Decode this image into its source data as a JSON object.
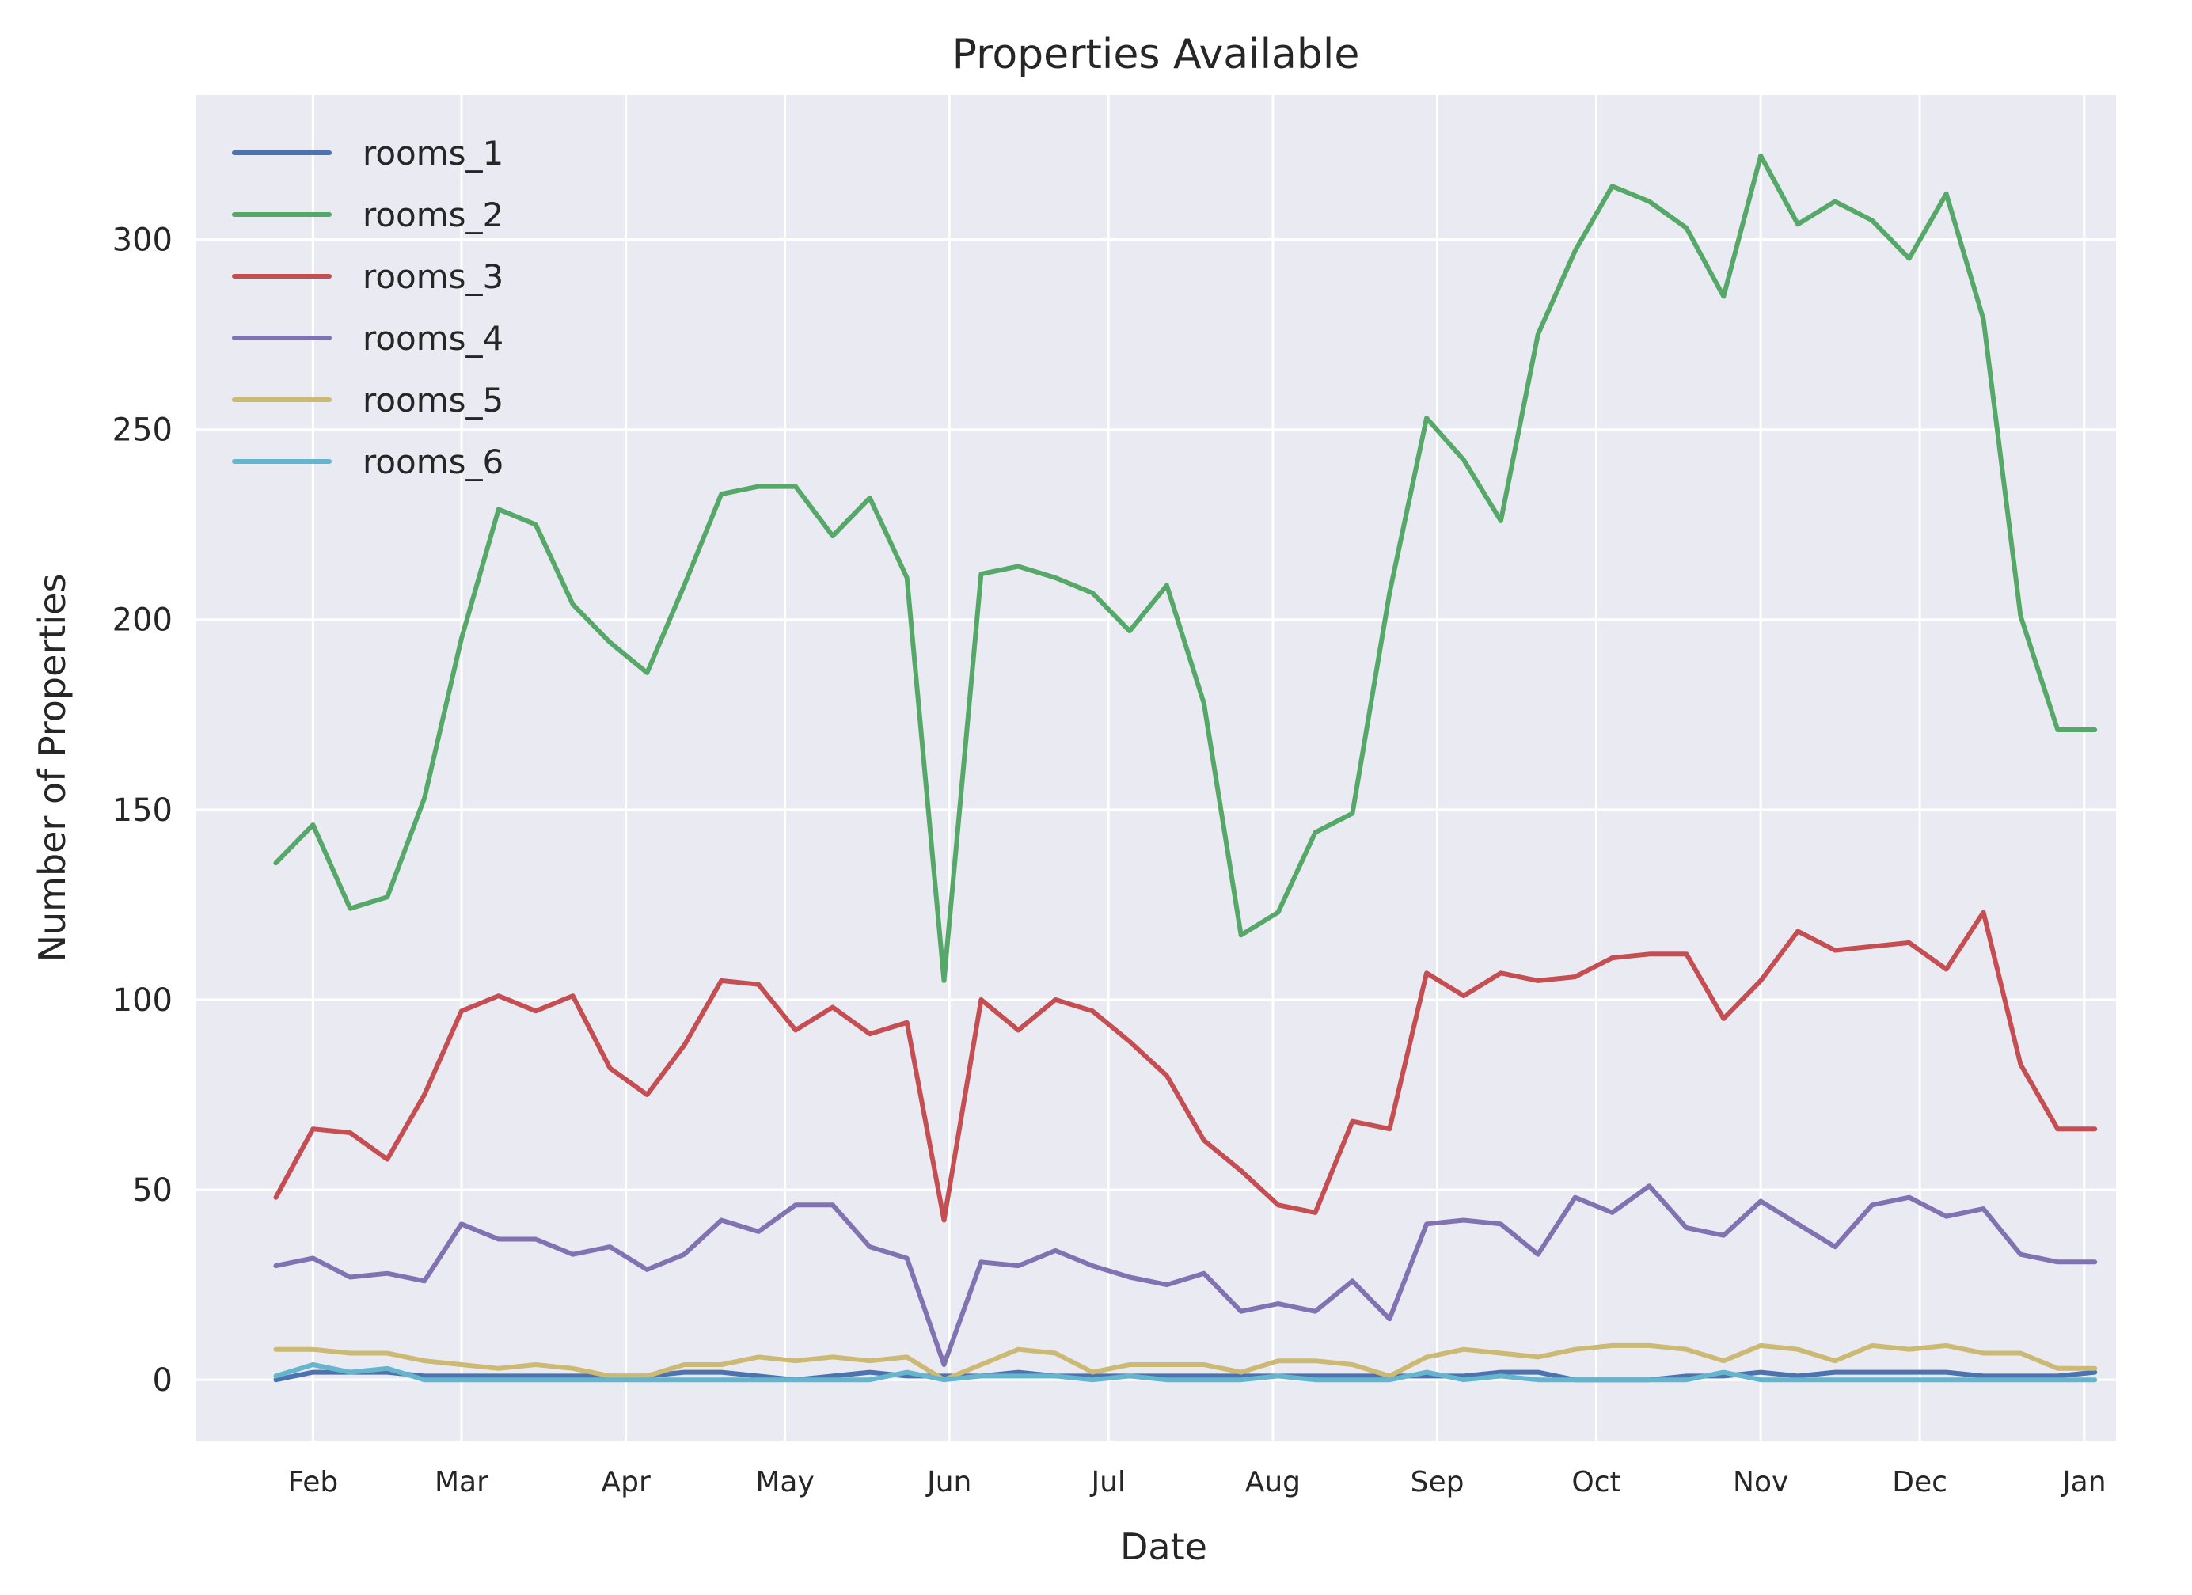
{
  "chart_data": {
    "type": "line",
    "title": "Properties Available",
    "xlabel": "Date",
    "ylabel": "Number of Properties",
    "ylim": [
      -16,
      338
    ],
    "xlim": [
      "2018-01-10",
      "2019-01-07"
    ],
    "yticks": [
      0,
      50,
      100,
      150,
      200,
      250,
      300
    ],
    "xticks": [
      {
        "label": "Feb",
        "date": "2018-02-01"
      },
      {
        "label": "Mar",
        "date": "2018-03-01"
      },
      {
        "label": "Apr",
        "date": "2018-04-01"
      },
      {
        "label": "May",
        "date": "2018-05-01"
      },
      {
        "label": "Jun",
        "date": "2018-06-01"
      },
      {
        "label": "Jul",
        "date": "2018-07-01"
      },
      {
        "label": "Aug",
        "date": "2018-08-01"
      },
      {
        "label": "Sep",
        "date": "2018-09-01"
      },
      {
        "label": "Oct",
        "date": "2018-10-01"
      },
      {
        "label": "Nov",
        "date": "2018-11-01"
      },
      {
        "label": "Dec",
        "date": "2018-12-01"
      },
      {
        "label": "Jan",
        "date": "2019-01-01"
      }
    ],
    "grid": true,
    "legend_position": "top-left",
    "x": [
      "2018-01-25",
      "2018-02-01",
      "2018-02-08",
      "2018-02-15",
      "2018-02-22",
      "2018-03-01",
      "2018-03-08",
      "2018-03-15",
      "2018-03-22",
      "2018-03-29",
      "2018-04-05",
      "2018-04-12",
      "2018-04-19",
      "2018-04-26",
      "2018-05-03",
      "2018-05-10",
      "2018-05-17",
      "2018-05-24",
      "2018-05-31",
      "2018-06-07",
      "2018-06-14",
      "2018-06-21",
      "2018-06-28",
      "2018-07-05",
      "2018-07-12",
      "2018-07-19",
      "2018-07-26",
      "2018-08-02",
      "2018-08-09",
      "2018-08-16",
      "2018-08-23",
      "2018-08-30",
      "2018-09-06",
      "2018-09-13",
      "2018-09-20",
      "2018-09-27",
      "2018-10-04",
      "2018-10-11",
      "2018-10-18",
      "2018-10-25",
      "2018-11-01",
      "2018-11-08",
      "2018-11-15",
      "2018-11-22",
      "2018-11-29",
      "2018-12-06",
      "2018-12-13",
      "2018-12-20",
      "2018-12-27",
      "2019-01-03"
    ],
    "series": [
      {
        "name": "rooms_1",
        "color": "#4c72b0",
        "values": [
          0,
          2,
          2,
          2,
          1,
          1,
          1,
          1,
          1,
          1,
          1,
          2,
          2,
          1,
          0,
          1,
          2,
          1,
          1,
          1,
          2,
          1,
          1,
          1,
          1,
          1,
          1,
          1,
          1,
          1,
          1,
          1,
          1,
          2,
          2,
          0,
          0,
          0,
          1,
          1,
          2,
          1,
          2,
          2,
          2,
          2,
          1,
          1,
          1,
          2
        ]
      },
      {
        "name": "rooms_2",
        "color": "#55a868",
        "values": [
          136,
          146,
          124,
          127,
          153,
          195,
          229,
          225,
          204,
          194,
          186,
          209,
          233,
          235,
          235,
          222,
          232,
          211,
          105,
          212,
          214,
          211,
          207,
          197,
          209,
          178,
          117,
          123,
          144,
          149,
          207,
          253,
          242,
          226,
          275,
          297,
          314,
          310,
          303,
          285,
          322,
          304,
          310,
          305,
          295,
          312,
          279,
          201,
          171,
          171
        ]
      },
      {
        "name": "rooms_3",
        "color": "#c44e52",
        "values": [
          48,
          66,
          65,
          58,
          75,
          97,
          101,
          97,
          101,
          82,
          75,
          88,
          105,
          104,
          92,
          98,
          91,
          94,
          42,
          100,
          92,
          100,
          97,
          89,
          80,
          63,
          55,
          46,
          44,
          68,
          66,
          107,
          101,
          107,
          105,
          106,
          111,
          112,
          112,
          95,
          105,
          118,
          113,
          114,
          115,
          108,
          123,
          83,
          66,
          66
        ]
      },
      {
        "name": "rooms_4",
        "color": "#8172b2",
        "values": [
          30,
          32,
          27,
          28,
          26,
          41,
          37,
          37,
          33,
          35,
          29,
          33,
          42,
          39,
          46,
          46,
          35,
          32,
          4,
          31,
          30,
          34,
          30,
          27,
          25,
          28,
          18,
          20,
          18,
          26,
          16,
          41,
          42,
          41,
          33,
          48,
          44,
          51,
          40,
          38,
          47,
          41,
          35,
          46,
          48,
          43,
          45,
          33,
          31,
          31
        ]
      },
      {
        "name": "rooms_5",
        "color": "#ccb974",
        "values": [
          8,
          8,
          7,
          7,
          5,
          4,
          3,
          4,
          3,
          1,
          1,
          4,
          4,
          6,
          5,
          6,
          5,
          6,
          0,
          4,
          8,
          7,
          2,
          4,
          4,
          4,
          2,
          5,
          5,
          4,
          1,
          6,
          8,
          7,
          6,
          8,
          9,
          9,
          8,
          5,
          9,
          8,
          5,
          9,
          8,
          9,
          7,
          7,
          3,
          3
        ]
      },
      {
        "name": "rooms_6",
        "color": "#64b5cd",
        "values": [
          1,
          4,
          2,
          3,
          0,
          0,
          0,
          0,
          0,
          0,
          0,
          0,
          0,
          0,
          0,
          0,
          0,
          2,
          0,
          1,
          1,
          1,
          0,
          1,
          0,
          0,
          0,
          1,
          0,
          0,
          0,
          2,
          0,
          1,
          0,
          0,
          0,
          0,
          0,
          2,
          0,
          0,
          0,
          0,
          0,
          0,
          0,
          0,
          0,
          0
        ]
      }
    ]
  }
}
